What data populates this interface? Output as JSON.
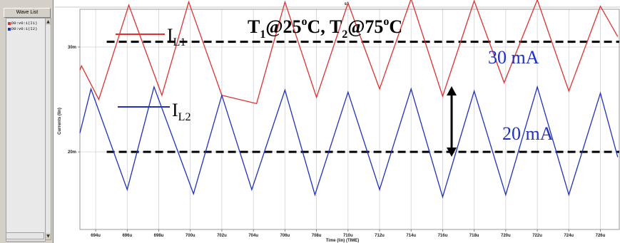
{
  "panel": {
    "title": "Wave List",
    "items": [
      {
        "label": "D0:v0:i(I1)",
        "color": "#e03030"
      },
      {
        "label": "D0:v0:i(I2)",
        "color": "#2030c0"
      }
    ]
  },
  "chart_data": {
    "type": "line",
    "window_title": "s1",
    "xlabel": "Time (lin) (TIME)",
    "ylabel": "Currents (lin)",
    "xlim": [
      693,
      727.2
    ],
    "ylim": [
      12.6,
      33.6
    ],
    "x_ticks": [
      "694u",
      "696u",
      "698u",
      "700u",
      "702u",
      "704u",
      "706u",
      "708u",
      "710u",
      "712u",
      "714u",
      "716u",
      "718u",
      "720u",
      "722u",
      "724u",
      "726u"
    ],
    "x_tick_values": [
      694,
      696,
      698,
      700,
      702,
      704,
      706,
      708,
      710,
      712,
      714,
      716,
      718,
      720,
      722,
      724,
      726
    ],
    "y_ticks": [
      "30m",
      "20m"
    ],
    "y_tick_values": [
      30,
      20
    ],
    "series": [
      {
        "name": "IL1",
        "color": "#e03030",
        "x": [
          693.0,
          693.1,
          694.2,
          696.1,
          698.2,
          699.9,
          702.0,
          704.2,
          706.0,
          708.0,
          710.0,
          712.0,
          714.0,
          716.0,
          718.0,
          719.9,
          722.0,
          724.0,
          726.0,
          727.1
        ],
        "y": [
          27.8,
          28.2,
          25.0,
          34.0,
          25.4,
          34.3,
          25.4,
          24.6,
          34.3,
          25.2,
          34.2,
          26.0,
          34.6,
          25.3,
          34.4,
          26.6,
          34.5,
          25.8,
          33.9,
          31.0
        ]
      },
      {
        "name": "IL2",
        "color": "#2030c0",
        "x": [
          693.0,
          693.7,
          696.0,
          697.7,
          700.2,
          702.0,
          703.9,
          706.0,
          707.9,
          710.0,
          712.0,
          714.0,
          716.0,
          718.0,
          720.0,
          722.0,
          724.0,
          726.0,
          727.1
        ],
        "y": [
          21.8,
          26.0,
          16.4,
          26.2,
          16.0,
          25.4,
          16.4,
          25.9,
          15.9,
          25.7,
          16.4,
          26.0,
          15.7,
          25.8,
          15.9,
          26.2,
          15.9,
          25.6,
          19.5
        ]
      }
    ],
    "reference_lines": [
      {
        "y": 30.5
      },
      {
        "y": 20.0
      }
    ],
    "annotations": {
      "title": "T1@25oC, T2@75oC",
      "il1_label": "IL1",
      "il2_label": "IL2",
      "upper_value": "30 mA",
      "lower_value": "20 mA"
    }
  }
}
